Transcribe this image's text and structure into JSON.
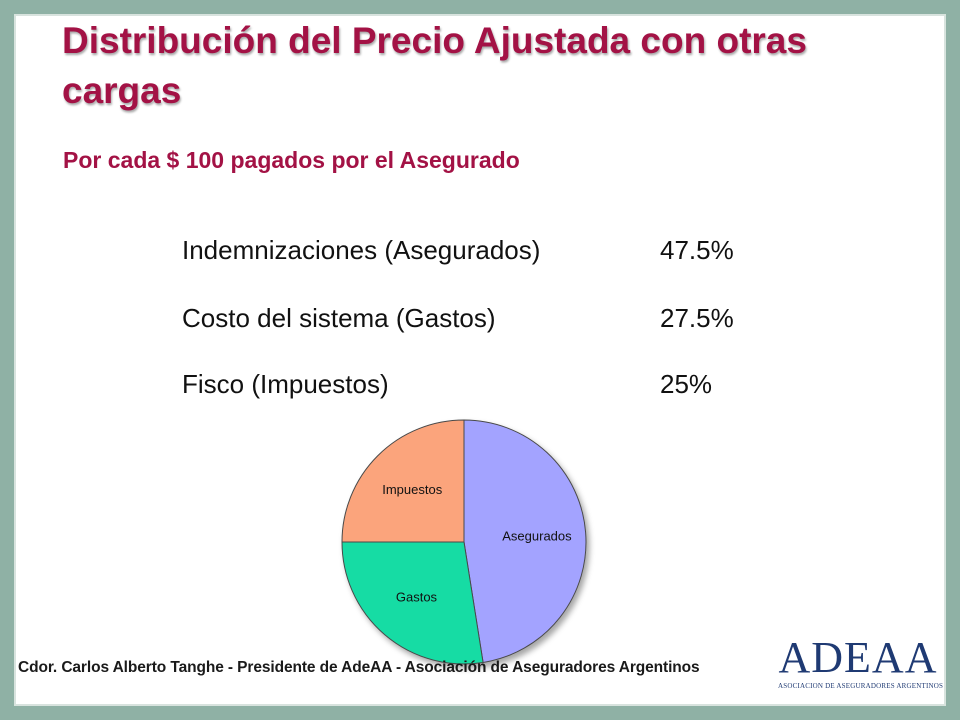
{
  "slide": {
    "title": "Distribución del Precio Ajustada con otras cargas",
    "subtitle": "Por cada $ 100 pagados por el Asegurado",
    "rows": [
      {
        "label": "Indemnizaciones (Asegurados)",
        "value": "47.5%"
      },
      {
        "label": "Costo del sistema (Gastos)",
        "value": "27.5%"
      },
      {
        "label": "Fisco (Impuestos)",
        "value": "25%"
      }
    ],
    "footer": "Cdor. Carlos Alberto Tanghe - Presidente  de AdeAA - Asociación de Aseguradores Argentinos",
    "logo": {
      "text": "ADEAA",
      "subtext": "ASOCIACION DE ASEGURADORES ARGENTINOS"
    }
  },
  "colors": {
    "title": "#a31245",
    "frame": "#8fb1a5"
  },
  "chart_data": {
    "type": "pie",
    "title": "",
    "slices": [
      {
        "label": "Asegurados",
        "value": 47.5,
        "color": "#a3a3ff"
      },
      {
        "label": "Gastos",
        "value": 27.5,
        "color": "#14dca4"
      },
      {
        "label": "Impuestos",
        "value": 25,
        "color": "#fba47c"
      }
    ],
    "start_angle_deg": 0,
    "direction": "clockwise",
    "legend": "none"
  }
}
